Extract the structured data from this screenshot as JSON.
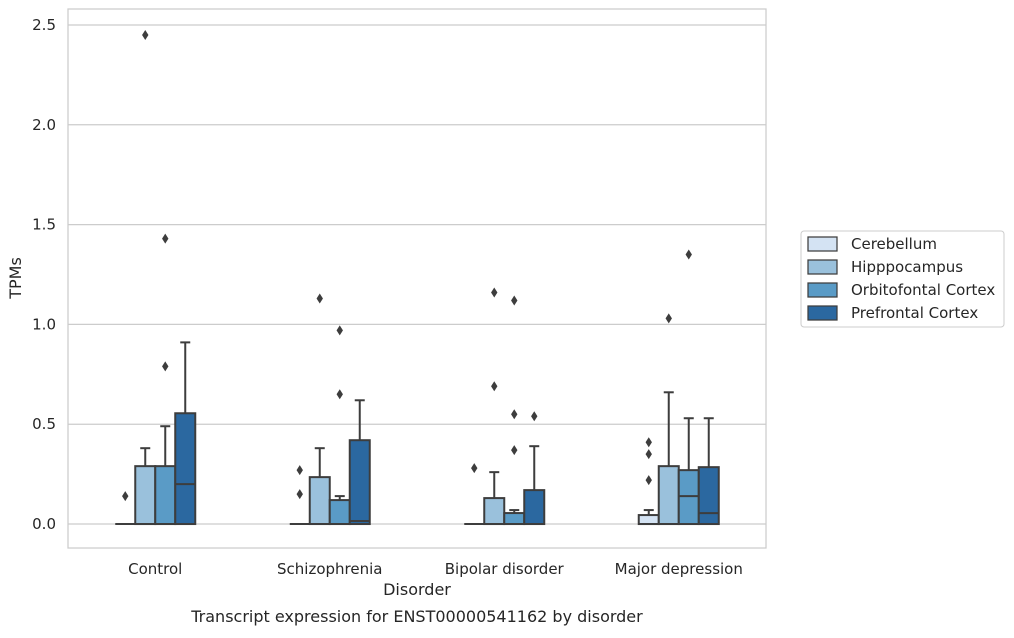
{
  "chart_data": {
    "type": "box",
    "xlabel": "Disorder",
    "ylabel": "TPMs",
    "caption": "Transcript expression for ENST00000541162 by disorder",
    "categories": [
      "Control",
      "Schizophrenia",
      "Bipolar disorder",
      "Major depression"
    ],
    "ylim": [
      -0.12,
      2.58
    ],
    "yticks": [
      "0.0",
      "0.5",
      "1.0",
      "1.5",
      "2.0",
      "2.5"
    ],
    "grid": true,
    "legend_position": "right",
    "series": [
      {
        "name": "Cerebellum",
        "color": "#d4e3f3",
        "boxes": [
          {
            "whisker_low": 0,
            "q1": 0,
            "median": 0,
            "q3": 0,
            "whisker_high": 0,
            "outliers": [
              0.14
            ]
          },
          {
            "whisker_low": 0,
            "q1": 0,
            "median": 0,
            "q3": 0,
            "whisker_high": 0,
            "outliers": [
              0.15,
              0.27
            ]
          },
          {
            "whisker_low": 0,
            "q1": 0,
            "median": 0,
            "q3": 0,
            "whisker_high": 0,
            "outliers": [
              0.28
            ]
          },
          {
            "whisker_low": 0,
            "q1": 0,
            "median": 0,
            "q3": 0.045,
            "whisker_high": 0.07,
            "outliers": [
              0.22,
              0.35,
              0.41
            ]
          }
        ]
      },
      {
        "name": "Hipppocampus",
        "color": "#9ac1dc",
        "boxes": [
          {
            "whisker_low": 0,
            "q1": 0,
            "median": 0,
            "q3": 0.29,
            "whisker_high": 0.38,
            "outliers": [
              2.45
            ]
          },
          {
            "whisker_low": 0,
            "q1": 0,
            "median": 0,
            "q3": 0.235,
            "whisker_high": 0.38,
            "outliers": [
              1.13
            ]
          },
          {
            "whisker_low": 0,
            "q1": 0,
            "median": 0,
            "q3": 0.13,
            "whisker_high": 0.26,
            "outliers": [
              0.69,
              1.16
            ]
          },
          {
            "whisker_low": 0,
            "q1": 0,
            "median": 0,
            "q3": 0.29,
            "whisker_high": 0.66,
            "outliers": [
              1.03
            ]
          }
        ]
      },
      {
        "name": "Orbitofontal Cortex",
        "color": "#5a9bc6",
        "boxes": [
          {
            "whisker_low": 0,
            "q1": 0,
            "median": 0,
            "q3": 0.29,
            "whisker_high": 0.49,
            "outliers": [
              0.79,
              1.43
            ]
          },
          {
            "whisker_low": 0,
            "q1": 0,
            "median": 0,
            "q3": 0.12,
            "whisker_high": 0.14,
            "outliers": [
              0.65,
              0.97
            ]
          },
          {
            "whisker_low": 0,
            "q1": 0,
            "median": 0,
            "q3": 0.055,
            "whisker_high": 0.07,
            "outliers": [
              0.37,
              0.55,
              1.12
            ]
          },
          {
            "whisker_low": 0,
            "q1": 0,
            "median": 0.14,
            "q3": 0.27,
            "whisker_high": 0.53,
            "outliers": [
              1.35
            ]
          }
        ]
      },
      {
        "name": "Prefrontal Cortex",
        "color": "#2b68a0",
        "boxes": [
          {
            "whisker_low": 0,
            "q1": 0,
            "median": 0.2,
            "q3": 0.555,
            "whisker_high": 0.91,
            "outliers": []
          },
          {
            "whisker_low": 0,
            "q1": 0,
            "median": 0.015,
            "q3": 0.42,
            "whisker_high": 0.62,
            "outliers": []
          },
          {
            "whisker_low": 0,
            "q1": 0,
            "median": 0,
            "q3": 0.17,
            "whisker_high": 0.39,
            "outliers": [
              0.54
            ]
          },
          {
            "whisker_low": 0,
            "q1": 0,
            "median": 0.055,
            "q3": 0.285,
            "whisker_high": 0.53,
            "outliers": []
          }
        ]
      }
    ]
  }
}
